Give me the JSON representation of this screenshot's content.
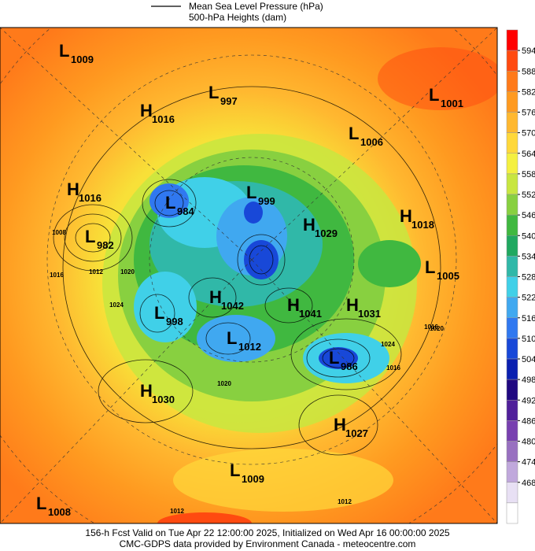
{
  "header": {
    "legend_lines": [
      "Mean Sea Level Pressure (hPa)",
      "500-hPa Heights (dam)"
    ]
  },
  "map": {
    "centers": [
      {
        "letter": "L",
        "value": 1009
      },
      {
        "letter": "L",
        "value": 997
      },
      {
        "letter": "L",
        "value": 1001
      },
      {
        "letter": "H",
        "value": 1016
      },
      {
        "letter": "L",
        "value": 1006
      },
      {
        "letter": "H",
        "value": 1016
      },
      {
        "letter": "L",
        "value": 984
      },
      {
        "letter": "L",
        "value": 999
      },
      {
        "letter": "H",
        "value": 1029
      },
      {
        "letter": "H",
        "value": 1018
      },
      {
        "letter": "L",
        "value": 982
      },
      {
        "letter": "L",
        "value": 1005
      },
      {
        "letter": "H",
        "value": 1042
      },
      {
        "letter": "H",
        "value": 1041
      },
      {
        "letter": "H",
        "value": 1031
      },
      {
        "letter": "L",
        "value": 998
      },
      {
        "letter": "L",
        "value": 1012
      },
      {
        "letter": "L",
        "value": 986
      },
      {
        "letter": "H",
        "value": 1030
      },
      {
        "letter": "H",
        "value": 1027
      },
      {
        "letter": "L",
        "value": 1009
      },
      {
        "letter": "L",
        "value": 1008
      }
    ],
    "isobar_labels": [
      1008,
      1016,
      1012,
      1020,
      1024,
      1024,
      1016,
      1020,
      1016,
      1020,
      1012,
      1012
    ]
  },
  "colorbar": {
    "labels": [
      594,
      588,
      582,
      576,
      570,
      564,
      558,
      552,
      546,
      540,
      534,
      528,
      522,
      516,
      510,
      504,
      498,
      492,
      486,
      480,
      474,
      468
    ],
    "colors": [
      "#ff0000",
      "#ff4a10",
      "#ff7a1a",
      "#ff9a20",
      "#ffb830",
      "#ffd83a",
      "#f4f040",
      "#c8e640",
      "#88d040",
      "#40b840",
      "#20a860",
      "#30b8a8",
      "#40d0e8",
      "#40a8f0",
      "#3078f0",
      "#1848d8",
      "#0a20b0",
      "#200880",
      "#50209a",
      "#7840b0",
      "#9870c0",
      "#c0a8dc",
      "#e8e0f4",
      "#ffffff"
    ]
  },
  "footer": {
    "lines": [
      "156-h Fcst Valid on Tue Apr 22 12:00:00 2025, Initialized on Wed Apr 16 00:00:00 2025",
      "CMC-GDPS data provided by Environment Canada - meteocentre.com"
    ]
  }
}
